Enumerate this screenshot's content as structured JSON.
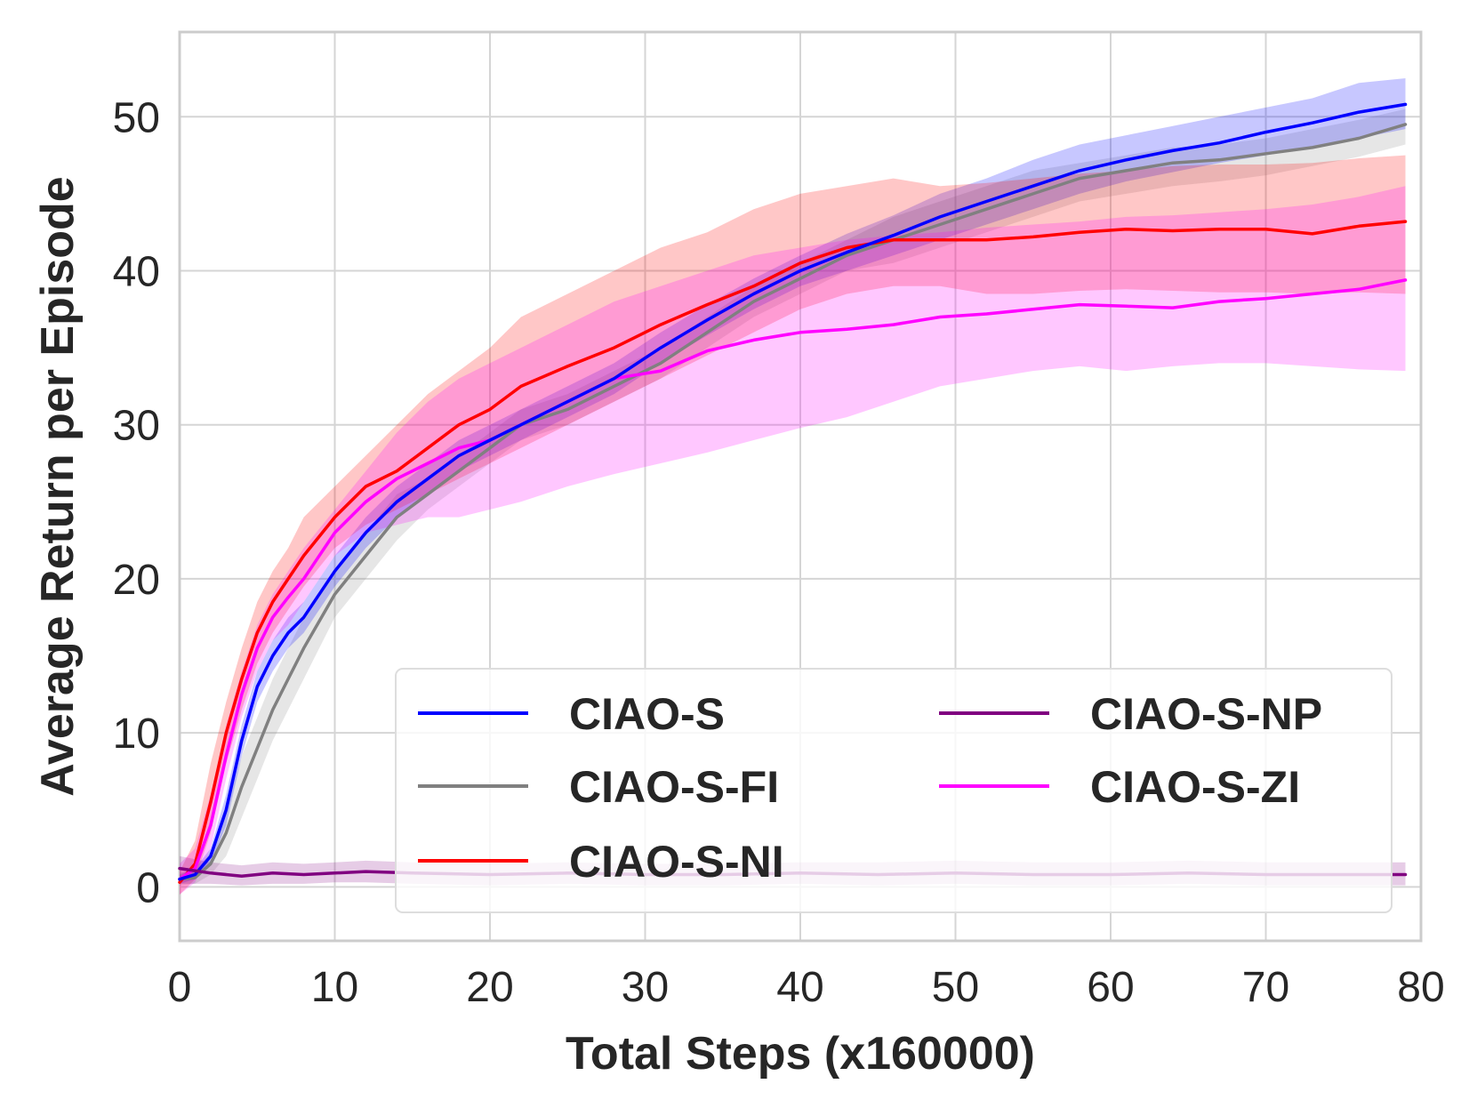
{
  "chart_data": {
    "type": "line",
    "xlabel": "Total Steps (x160000)",
    "ylabel": "Average Return per Episode",
    "xlim": [
      0,
      80
    ],
    "ylim": [
      -3.5,
      55.5
    ],
    "xticks": [
      0,
      10,
      20,
      30,
      40,
      50,
      60,
      70,
      80
    ],
    "yticks": [
      0,
      10,
      20,
      30,
      40,
      50
    ],
    "grid": true,
    "legend_position": "lower-right",
    "legend_columns": 2,
    "series": [
      {
        "name": "CIAO-S",
        "color": "#0000ff",
        "x": [
          0,
          1,
          2,
          3,
          4,
          5,
          6,
          7,
          8,
          10,
          12,
          14,
          16,
          18,
          20,
          22,
          25,
          28,
          31,
          34,
          37,
          40,
          43,
          46,
          49,
          52,
          55,
          58,
          61,
          64,
          67,
          70,
          73,
          76,
          79
        ],
        "y": [
          0.5,
          0.8,
          2.0,
          5.0,
          9.5,
          13.0,
          15.0,
          16.5,
          17.5,
          20.5,
          23.0,
          25.0,
          26.5,
          28.0,
          29.0,
          30.0,
          31.5,
          33.0,
          35.0,
          36.8,
          38.5,
          40.0,
          41.2,
          42.3,
          43.5,
          44.5,
          45.5,
          46.5,
          47.2,
          47.8,
          48.3,
          49.0,
          49.6,
          50.3,
          50.8
        ],
        "lower": [
          0.2,
          0.5,
          1.5,
          4.0,
          8.5,
          12.0,
          14.0,
          15.5,
          16.5,
          19.5,
          22.0,
          24.0,
          25.5,
          27.0,
          28.0,
          29.0,
          30.5,
          32.0,
          34.0,
          35.8,
          37.5,
          39.0,
          40.0,
          41.0,
          42.0,
          43.0,
          44.0,
          45.0,
          45.8,
          46.4,
          47.0,
          47.5,
          48.0,
          48.6,
          49.2
        ],
        "upper": [
          0.8,
          1.2,
          2.5,
          6.0,
          10.5,
          14.0,
          16.0,
          17.5,
          18.5,
          21.5,
          24.0,
          26.0,
          27.5,
          29.0,
          30.0,
          31.0,
          32.5,
          34.0,
          36.0,
          37.8,
          39.5,
          41.0,
          42.4,
          43.6,
          45.0,
          46.0,
          47.2,
          48.2,
          48.8,
          49.4,
          50.0,
          50.6,
          51.2,
          52.2,
          52.5
        ]
      },
      {
        "name": "CIAO-S-FI",
        "color": "#808080",
        "x": [
          0,
          1,
          2,
          3,
          4,
          5,
          6,
          7,
          8,
          10,
          12,
          14,
          16,
          18,
          20,
          22,
          25,
          28,
          31,
          34,
          37,
          40,
          43,
          46,
          49,
          52,
          55,
          58,
          61,
          64,
          67,
          70,
          73,
          76,
          79
        ],
        "y": [
          0.5,
          0.6,
          1.5,
          3.5,
          6.5,
          9.0,
          11.5,
          13.5,
          15.5,
          19.0,
          21.5,
          24.0,
          25.5,
          27.0,
          28.5,
          30.0,
          31.0,
          32.5,
          34.0,
          36.0,
          38.0,
          39.5,
          41.0,
          42.0,
          43.0,
          44.0,
          45.0,
          46.0,
          46.5,
          47.0,
          47.2,
          47.6,
          48.0,
          48.6,
          49.5
        ],
        "lower": [
          0.1,
          0.2,
          0.8,
          2.0,
          4.5,
          7.0,
          9.5,
          11.5,
          13.5,
          17.5,
          20.0,
          22.5,
          24.5,
          26.0,
          27.5,
          29.0,
          30.0,
          31.5,
          33.0,
          35.0,
          37.0,
          38.5,
          40.0,
          40.5,
          41.5,
          42.5,
          43.5,
          44.5,
          45.0,
          45.5,
          45.8,
          46.2,
          46.8,
          47.4,
          48.2
        ],
        "upper": [
          0.9,
          1.0,
          2.3,
          5.0,
          8.5,
          11.0,
          13.5,
          15.5,
          17.5,
          20.5,
          23.0,
          25.5,
          26.5,
          28.0,
          29.5,
          31.0,
          32.0,
          33.5,
          35.0,
          37.0,
          39.0,
          40.5,
          42.0,
          43.5,
          44.5,
          45.5,
          46.5,
          47.0,
          47.5,
          48.0,
          48.2,
          48.6,
          49.2,
          49.8,
          50.5
        ]
      },
      {
        "name": "CIAO-S-NI",
        "color": "#ff0000",
        "x": [
          0,
          1,
          2,
          3,
          4,
          5,
          6,
          7,
          8,
          10,
          12,
          14,
          16,
          18,
          20,
          22,
          25,
          28,
          31,
          34,
          37,
          40,
          43,
          46,
          49,
          52,
          55,
          58,
          61,
          64,
          67,
          70,
          73,
          76,
          79
        ],
        "y": [
          0.3,
          1.5,
          5.5,
          10.0,
          13.5,
          16.5,
          18.5,
          20.0,
          21.5,
          24.0,
          26.0,
          27.0,
          28.5,
          30.0,
          31.0,
          32.5,
          33.8,
          35.0,
          36.5,
          37.8,
          39.0,
          40.5,
          41.5,
          42.0,
          42.0,
          42.0,
          42.2,
          42.5,
          42.7,
          42.6,
          42.7,
          42.7,
          42.4,
          42.9,
          43.2
        ],
        "lower": [
          -0.5,
          0.5,
          3.5,
          8.0,
          11.5,
          14.5,
          16.5,
          18.0,
          19.5,
          22.0,
          23.5,
          24.5,
          25.5,
          26.5,
          27.5,
          28.5,
          30.0,
          31.5,
          33.0,
          34.5,
          36.0,
          37.5,
          38.5,
          39.0,
          39.0,
          38.5,
          38.5,
          38.7,
          38.8,
          38.7,
          38.6,
          38.6,
          38.5,
          38.6,
          38.5
        ],
        "upper": [
          1.0,
          3.0,
          8.0,
          12.0,
          15.5,
          18.5,
          20.5,
          22.0,
          24.0,
          26.0,
          28.0,
          30.0,
          32.0,
          33.5,
          35.0,
          37.0,
          38.5,
          40.0,
          41.5,
          42.5,
          44.0,
          45.0,
          45.5,
          46.0,
          45.5,
          45.7,
          46.0,
          46.3,
          46.5,
          46.8,
          46.9,
          46.9,
          47.0,
          47.3,
          47.5
        ]
      },
      {
        "name": "CIAO-S-NP",
        "color": "#800080",
        "x": [
          0,
          2,
          4,
          6,
          8,
          10,
          12,
          15,
          20,
          25,
          30,
          35,
          40,
          45,
          50,
          55,
          60,
          65,
          70,
          75,
          79
        ],
        "y": [
          1.2,
          0.9,
          0.7,
          0.9,
          0.8,
          0.9,
          1.0,
          0.9,
          0.8,
          0.9,
          0.8,
          0.8,
          0.9,
          0.8,
          0.9,
          0.8,
          0.8,
          0.9,
          0.8,
          0.8,
          0.8
        ],
        "lower": [
          0.2,
          0.2,
          0.1,
          0.2,
          0.2,
          0.3,
          0.3,
          0.2,
          0.1,
          0.2,
          0.1,
          0.1,
          0.2,
          0.1,
          0.2,
          0.1,
          0.1,
          0.2,
          0.1,
          0.1,
          0.1
        ],
        "upper": [
          2.0,
          1.6,
          1.4,
          1.6,
          1.5,
          1.6,
          1.7,
          1.6,
          1.5,
          1.6,
          1.5,
          1.5,
          1.6,
          1.6,
          1.7,
          1.6,
          1.6,
          1.7,
          1.6,
          1.6,
          1.6
        ]
      },
      {
        "name": "CIAO-S-ZI",
        "color": "#ff00ff",
        "x": [
          0,
          1,
          2,
          3,
          4,
          5,
          6,
          7,
          8,
          10,
          12,
          14,
          16,
          18,
          20,
          22,
          25,
          28,
          31,
          34,
          37,
          40,
          43,
          46,
          49,
          52,
          55,
          58,
          61,
          64,
          67,
          70,
          73,
          76,
          79
        ],
        "y": [
          0.5,
          1.2,
          4.0,
          8.5,
          12.5,
          15.5,
          17.5,
          18.8,
          20.0,
          23.0,
          25.0,
          26.5,
          27.5,
          28.5,
          29.0,
          30.0,
          31.5,
          33.0,
          33.5,
          34.8,
          35.5,
          36.0,
          36.2,
          36.5,
          37.0,
          37.2,
          37.5,
          37.8,
          37.7,
          37.6,
          38.0,
          38.2,
          38.5,
          38.8,
          39.4
        ],
        "lower": [
          -0.5,
          0.3,
          2.5,
          7.0,
          11.0,
          14.0,
          16.0,
          17.0,
          18.5,
          21.5,
          23.0,
          23.5,
          24.0,
          24.0,
          24.5,
          25.0,
          26.0,
          26.8,
          27.5,
          28.2,
          29.0,
          29.8,
          30.5,
          31.5,
          32.5,
          33.0,
          33.5,
          33.8,
          33.5,
          33.8,
          34.0,
          34.0,
          33.8,
          33.6,
          33.5
        ],
        "upper": [
          1.5,
          2.5,
          6.0,
          10.5,
          14.0,
          17.0,
          19.0,
          20.5,
          22.0,
          24.5,
          27.0,
          29.5,
          31.5,
          33.0,
          34.0,
          35.0,
          36.5,
          38.0,
          39.0,
          40.0,
          41.0,
          41.5,
          42.0,
          42.3,
          42.5,
          42.8,
          43.0,
          43.2,
          43.5,
          43.6,
          43.8,
          44.0,
          44.3,
          44.8,
          45.5
        ]
      }
    ]
  }
}
